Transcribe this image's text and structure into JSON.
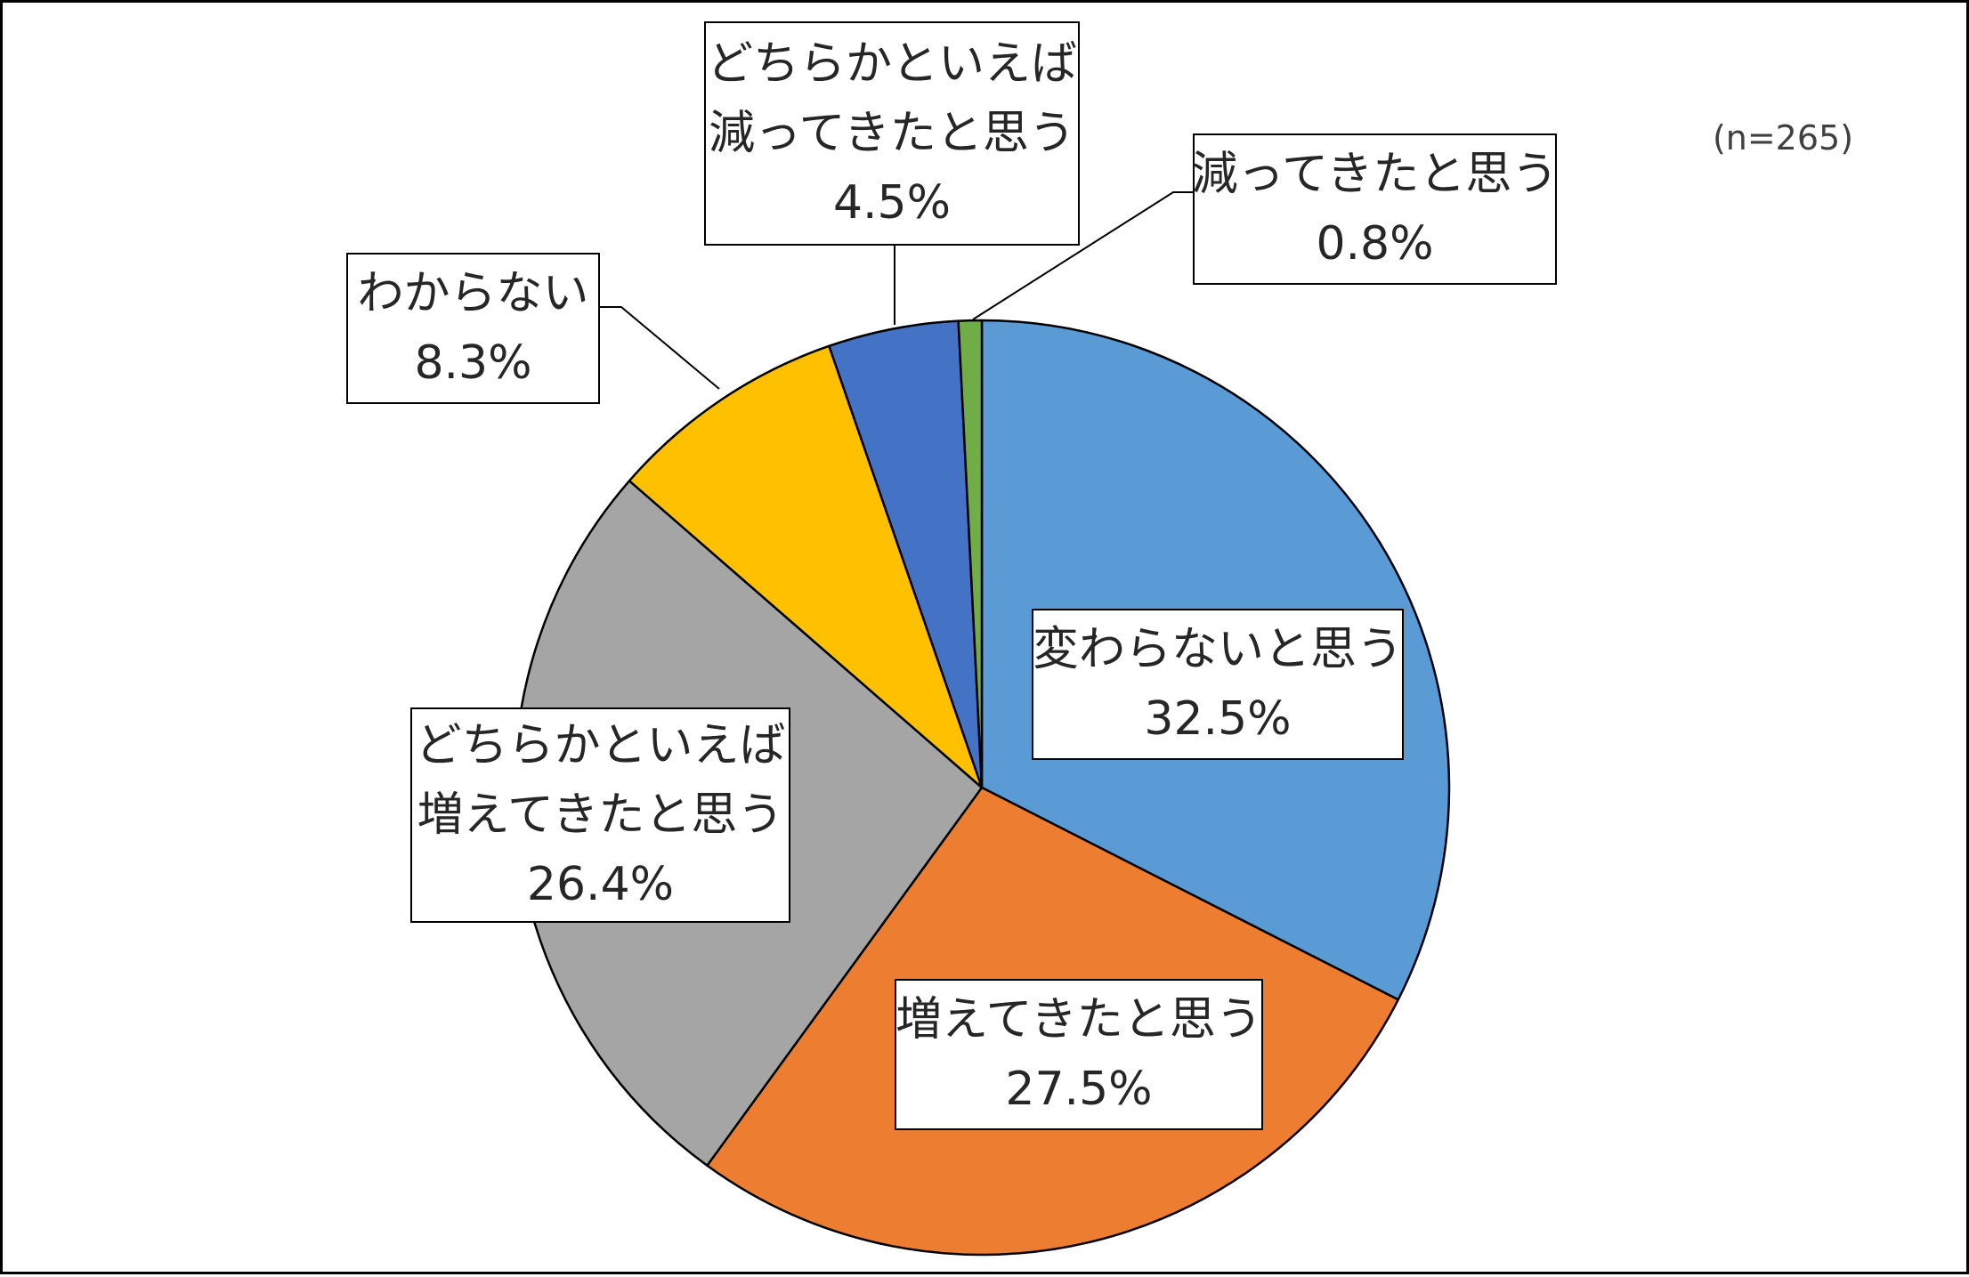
{
  "chart_data": {
    "type": "pie",
    "sample_note": "(n=265)",
    "slices": [
      {
        "lines": [
          "変わらないと思う"
        ],
        "value": 32.5,
        "display": "32.5%",
        "color": "#5B9BD5"
      },
      {
        "lines": [
          "増えてきたと思う"
        ],
        "value": 27.5,
        "display": "27.5%",
        "color": "#ED7D31"
      },
      {
        "lines": [
          "どちらかといえば",
          "増えてきたと思う"
        ],
        "value": 26.4,
        "display": "26.4%",
        "color": "#A5A5A5"
      },
      {
        "lines": [
          "わからない"
        ],
        "value": 8.3,
        "display": "8.3%",
        "color": "#FFC000"
      },
      {
        "lines": [
          "どちらかといえば",
          "減ってきたと思う"
        ],
        "value": 4.5,
        "display": "4.5%",
        "color": "#4472C4"
      },
      {
        "lines": [
          "減ってきたと思う"
        ],
        "value": 0.8,
        "display": "0.8%",
        "color": "#70AD47"
      }
    ]
  }
}
